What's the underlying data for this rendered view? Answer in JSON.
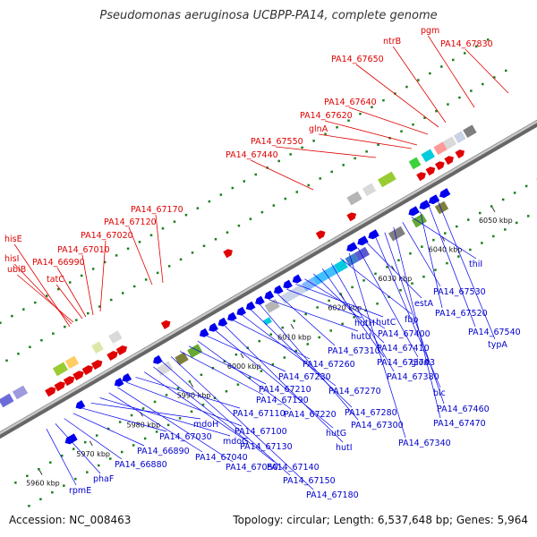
{
  "header": {
    "title": "Pseudomonas aeruginosa UCBPP-PA14, complete genome"
  },
  "footer": {
    "accession": "Accession: NC_008463",
    "stats": "Topology: circular; Length: 6,537,648 bp; Genes: 5,964"
  },
  "colors": {
    "forward": "#e00000",
    "reverse": "#0000ee",
    "backbone": "#888888",
    "tick": "#1a7f1a"
  },
  "ticks": [
    "5960 kbp",
    "5970 kbp",
    "5980 kbp",
    "5990 kbp",
    "6000 kbp",
    "6010 kbp",
    "6020 kbp",
    "6030 kbp",
    "6040 kbp",
    "6050 kbp"
  ],
  "labels_forward": [
    "hisE",
    "hisI",
    "ubiB",
    "tatC",
    "PA14_66990",
    "PA14_67010",
    "PA14_67020",
    "PA14_67120",
    "PA14_67170",
    "PA14_67440",
    "PA14_67550",
    "glnA",
    "PA14_67620",
    "PA14_67640",
    "PA14_67650",
    "ntrB",
    "pgm",
    "PA14_67830"
  ],
  "labels_reverse": [
    "rpmE",
    "phaF",
    "PA14_66880",
    "PA14_66890",
    "PA14_67030",
    "mdoH",
    "mdoG",
    "PA14_67040",
    "PA14_67050",
    "PA14_67100",
    "PA14_67110",
    "PA14_67130",
    "PA14_67140",
    "PA14_67150",
    "PA14_67180",
    "PA14_67190",
    "PA14_67210",
    "PA14_67220",
    "PA14_67230",
    "hutG",
    "hutI",
    "PA14_67260",
    "PA14_67270",
    "PA14_67280",
    "PA14_67300",
    "hutU",
    "PA14_67310",
    "hutH",
    "hutC",
    "PA14_67400",
    "PA14_67410",
    "PA14_67370",
    "PA14_67380",
    "fbp",
    "PA14_67340",
    "gloA3",
    "estA",
    "blc",
    "PA14_67460",
    "PA14_67470",
    "PA14_67530",
    "thiI",
    "PA14_67520",
    "PA14_67540",
    "typA"
  ]
}
